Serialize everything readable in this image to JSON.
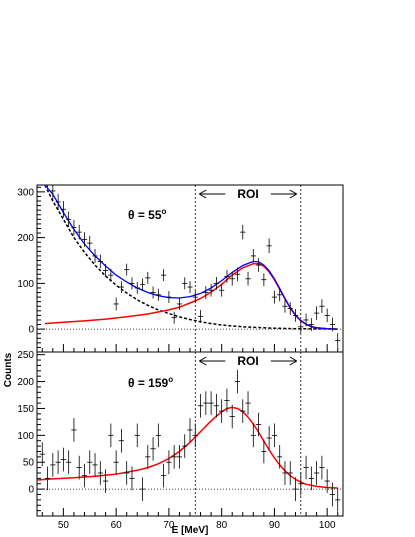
{
  "chart_data": [
    {
      "type": "scatter",
      "panel": "top",
      "annotation": "θ = 55°",
      "annotation_base": "θ = 55",
      "annotation_sup": "o",
      "roi_label": "ROI",
      "xlabel": "E [MeV]",
      "ylabel": "Counts",
      "xlim": [
        45,
        103
      ],
      "ylim": [
        -50,
        315
      ],
      "yticks": [
        0,
        100,
        200,
        300
      ],
      "roi": [
        75,
        95
      ],
      "zero_line": true,
      "colors": {
        "total_fit": "#0000ff",
        "signal_fit": "#ff0000",
        "background_fit": "#000000",
        "data": "#000000"
      },
      "points": [
        {
          "x": 47,
          "y": 330,
          "err": 20
        },
        {
          "x": 48,
          "y": 302,
          "err": 20
        },
        {
          "x": 49,
          "y": 278,
          "err": 18
        },
        {
          "x": 50,
          "y": 262,
          "err": 18
        },
        {
          "x": 51,
          "y": 240,
          "err": 17
        },
        {
          "x": 52,
          "y": 222,
          "err": 17
        },
        {
          "x": 53,
          "y": 212,
          "err": 16
        },
        {
          "x": 54,
          "y": 196,
          "err": 16
        },
        {
          "x": 55,
          "y": 188,
          "err": 16
        },
        {
          "x": 56,
          "y": 160,
          "err": 15
        },
        {
          "x": 57,
          "y": 148,
          "err": 15
        },
        {
          "x": 58,
          "y": 128,
          "err": 14
        },
        {
          "x": 59,
          "y": 118,
          "err": 14
        },
        {
          "x": 60,
          "y": 55,
          "err": 14
        },
        {
          "x": 61,
          "y": 92,
          "err": 13
        },
        {
          "x": 62,
          "y": 130,
          "err": 13
        },
        {
          "x": 63,
          "y": 100,
          "err": 13
        },
        {
          "x": 64,
          "y": 90,
          "err": 13
        },
        {
          "x": 65,
          "y": 98,
          "err": 13
        },
        {
          "x": 66,
          "y": 112,
          "err": 13
        },
        {
          "x": 67,
          "y": 80,
          "err": 13
        },
        {
          "x": 68,
          "y": 75,
          "err": 13
        },
        {
          "x": 69,
          "y": 118,
          "err": 13
        },
        {
          "x": 70,
          "y": 70,
          "err": 13
        },
        {
          "x": 71,
          "y": 25,
          "err": 13
        },
        {
          "x": 72,
          "y": 55,
          "err": 13
        },
        {
          "x": 73,
          "y": 100,
          "err": 13
        },
        {
          "x": 74,
          "y": 92,
          "err": 13
        },
        {
          "x": 75,
          "y": 70,
          "err": 13
        },
        {
          "x": 76,
          "y": 28,
          "err": 14
        },
        {
          "x": 77,
          "y": 80,
          "err": 14
        },
        {
          "x": 78,
          "y": 85,
          "err": 14
        },
        {
          "x": 79,
          "y": 100,
          "err": 14
        },
        {
          "x": 80,
          "y": 85,
          "err": 14
        },
        {
          "x": 81,
          "y": 115,
          "err": 14
        },
        {
          "x": 82,
          "y": 110,
          "err": 15
        },
        {
          "x": 83,
          "y": 120,
          "err": 15
        },
        {
          "x": 84,
          "y": 212,
          "err": 16
        },
        {
          "x": 85,
          "y": 110,
          "err": 15
        },
        {
          "x": 86,
          "y": 160,
          "err": 15
        },
        {
          "x": 87,
          "y": 140,
          "err": 15
        },
        {
          "x": 88,
          "y": 108,
          "err": 14
        },
        {
          "x": 89,
          "y": 182,
          "err": 16
        },
        {
          "x": 90,
          "y": 70,
          "err": 14
        },
        {
          "x": 91,
          "y": 75,
          "err": 14
        },
        {
          "x": 92,
          "y": 50,
          "err": 14
        },
        {
          "x": 93,
          "y": 45,
          "err": 14
        },
        {
          "x": 94,
          "y": 30,
          "err": 14
        },
        {
          "x": 95,
          "y": 5,
          "err": 14
        },
        {
          "x": 96,
          "y": 20,
          "err": 14
        },
        {
          "x": 97,
          "y": 10,
          "err": 14
        },
        {
          "x": 98,
          "y": 35,
          "err": 15
        },
        {
          "x": 99,
          "y": 50,
          "err": 15
        },
        {
          "x": 100,
          "y": 30,
          "err": 15
        },
        {
          "x": 101,
          "y": 10,
          "err": 15
        },
        {
          "x": 102,
          "y": -25,
          "err": 16
        }
      ],
      "fit_total": [
        [
          46.5,
          330
        ],
        [
          48,
          295
        ],
        [
          50,
          255
        ],
        [
          52,
          218
        ],
        [
          54,
          186
        ],
        [
          56,
          160
        ],
        [
          58,
          138
        ],
        [
          60,
          118
        ],
        [
          62,
          103
        ],
        [
          64,
          90
        ],
        [
          66,
          80
        ],
        [
          68,
          73
        ],
        [
          70,
          69
        ],
        [
          72,
          68
        ],
        [
          74,
          71
        ],
        [
          76,
          78
        ],
        [
          78,
          90
        ],
        [
          80,
          106
        ],
        [
          82,
          124
        ],
        [
          84,
          139
        ],
        [
          86,
          148
        ],
        [
          87,
          147
        ],
        [
          88,
          140
        ],
        [
          89,
          128
        ],
        [
          90,
          110
        ],
        [
          91,
          89
        ],
        [
          92,
          67
        ],
        [
          93,
          47
        ],
        [
          94,
          31
        ],
        [
          95,
          19
        ],
        [
          96,
          11
        ],
        [
          97,
          6
        ],
        [
          98,
          3
        ],
        [
          100,
          1
        ],
        [
          102,
          0
        ]
      ],
      "fit_signal": [
        [
          46.5,
          12
        ],
        [
          50,
          15
        ],
        [
          54,
          18
        ],
        [
          58,
          22
        ],
        [
          62,
          27
        ],
        [
          66,
          33
        ],
        [
          70,
          42
        ],
        [
          72,
          48
        ],
        [
          74,
          57
        ],
        [
          76,
          67
        ],
        [
          78,
          81
        ],
        [
          80,
          98
        ],
        [
          82,
          118
        ],
        [
          84,
          134
        ],
        [
          86,
          143
        ],
        [
          87,
          143
        ],
        [
          88,
          137
        ],
        [
          89,
          125
        ],
        [
          90,
          108
        ],
        [
          91,
          87
        ],
        [
          92,
          66
        ],
        [
          93,
          46
        ],
        [
          94,
          30
        ],
        [
          95,
          18
        ],
        [
          96,
          10
        ],
        [
          97,
          5
        ],
        [
          98,
          3
        ],
        [
          100,
          1
        ],
        [
          102,
          0
        ]
      ],
      "fit_background": [
        [
          46.5,
          318
        ],
        [
          48,
          280
        ],
        [
          50,
          240
        ],
        [
          52,
          200
        ],
        [
          54,
          168
        ],
        [
          56,
          140
        ],
        [
          58,
          116
        ],
        [
          60,
          96
        ],
        [
          62,
          79
        ],
        [
          64,
          64
        ],
        [
          66,
          52
        ],
        [
          68,
          42
        ],
        [
          70,
          34
        ],
        [
          72,
          27
        ],
        [
          74,
          21
        ],
        [
          76,
          16
        ],
        [
          78,
          12
        ],
        [
          80,
          9
        ],
        [
          82,
          7
        ],
        [
          84,
          5
        ],
        [
          86,
          4
        ],
        [
          88,
          3
        ],
        [
          90,
          2
        ],
        [
          94,
          1
        ],
        [
          102,
          0
        ]
      ]
    },
    {
      "type": "scatter",
      "panel": "bottom",
      "annotation": "θ = 159°",
      "annotation_base": "θ = 159",
      "annotation_sup": "o",
      "roi_label": "ROI",
      "xlabel": "E [MeV]",
      "ylabel": "Counts",
      "xlim": [
        45,
        103
      ],
      "ylim": [
        -50,
        255
      ],
      "yticks": [
        0,
        50,
        100,
        150,
        200,
        250
      ],
      "xticks": [
        50,
        60,
        70,
        80,
        90,
        100
      ],
      "roi": [
        75,
        95
      ],
      "zero_line": true,
      "colors": {
        "signal_fit": "#ff0000",
        "data": "#000000"
      },
      "points": [
        {
          "x": 46,
          "y": 65,
          "err": 22
        },
        {
          "x": 47,
          "y": 20,
          "err": 22
        },
        {
          "x": 48,
          "y": 45,
          "err": 22
        },
        {
          "x": 49,
          "y": 50,
          "err": 22
        },
        {
          "x": 50,
          "y": 55,
          "err": 22
        },
        {
          "x": 51,
          "y": 50,
          "err": 22
        },
        {
          "x": 52,
          "y": 110,
          "err": 22
        },
        {
          "x": 53,
          "y": 40,
          "err": 22
        },
        {
          "x": 54,
          "y": 25,
          "err": 22
        },
        {
          "x": 55,
          "y": 50,
          "err": 22
        },
        {
          "x": 56,
          "y": 45,
          "err": 22
        },
        {
          "x": 57,
          "y": 30,
          "err": 22
        },
        {
          "x": 58,
          "y": 15,
          "err": 22
        },
        {
          "x": 59,
          "y": 100,
          "err": 22
        },
        {
          "x": 60,
          "y": 50,
          "err": 22
        },
        {
          "x": 61,
          "y": 90,
          "err": 22
        },
        {
          "x": 62,
          "y": 30,
          "err": 22
        },
        {
          "x": 63,
          "y": 20,
          "err": 22
        },
        {
          "x": 64,
          "y": 100,
          "err": 22
        },
        {
          "x": 65,
          "y": 0,
          "err": 22
        },
        {
          "x": 66,
          "y": 60,
          "err": 22
        },
        {
          "x": 67,
          "y": 75,
          "err": 22
        },
        {
          "x": 68,
          "y": 100,
          "err": 22
        },
        {
          "x": 69,
          "y": 25,
          "err": 22
        },
        {
          "x": 70,
          "y": 50,
          "err": 22
        },
        {
          "x": 71,
          "y": 60,
          "err": 22
        },
        {
          "x": 72,
          "y": 60,
          "err": 22
        },
        {
          "x": 73,
          "y": 80,
          "err": 22
        },
        {
          "x": 74,
          "y": 110,
          "err": 22
        },
        {
          "x": 75,
          "y": 100,
          "err": 22
        },
        {
          "x": 76,
          "y": 155,
          "err": 22
        },
        {
          "x": 77,
          "y": 160,
          "err": 22
        },
        {
          "x": 78,
          "y": 160,
          "err": 22
        },
        {
          "x": 79,
          "y": 155,
          "err": 22
        },
        {
          "x": 80,
          "y": 145,
          "err": 22
        },
        {
          "x": 81,
          "y": 165,
          "err": 22
        },
        {
          "x": 82,
          "y": 135,
          "err": 22
        },
        {
          "x": 83,
          "y": 200,
          "err": 22
        },
        {
          "x": 84,
          "y": 145,
          "err": 22
        },
        {
          "x": 85,
          "y": 160,
          "err": 22
        },
        {
          "x": 86,
          "y": 100,
          "err": 22
        },
        {
          "x": 87,
          "y": 120,
          "err": 22
        },
        {
          "x": 88,
          "y": 70,
          "err": 22
        },
        {
          "x": 89,
          "y": 95,
          "err": 22
        },
        {
          "x": 90,
          "y": 100,
          "err": 22
        },
        {
          "x": 91,
          "y": 60,
          "err": 22
        },
        {
          "x": 92,
          "y": 30,
          "err": 22
        },
        {
          "x": 93,
          "y": 30,
          "err": 22
        },
        {
          "x": 94,
          "y": 0,
          "err": 22
        },
        {
          "x": 95,
          "y": 10,
          "err": 22
        },
        {
          "x": 96,
          "y": 40,
          "err": 22
        },
        {
          "x": 97,
          "y": 20,
          "err": 22
        },
        {
          "x": 98,
          "y": 30,
          "err": 22
        },
        {
          "x": 99,
          "y": 40,
          "err": 22
        },
        {
          "x": 100,
          "y": 15,
          "err": 22
        },
        {
          "x": 101,
          "y": -10,
          "err": 22
        },
        {
          "x": 102,
          "y": -20,
          "err": 22
        }
      ],
      "fit_signal": [
        [
          45,
          17
        ],
        [
          48,
          19
        ],
        [
          52,
          21
        ],
        [
          56,
          24
        ],
        [
          60,
          28
        ],
        [
          64,
          35
        ],
        [
          66,
          40
        ],
        [
          68,
          47
        ],
        [
          70,
          57
        ],
        [
          72,
          70
        ],
        [
          74,
          87
        ],
        [
          76,
          107
        ],
        [
          78,
          127
        ],
        [
          80,
          144
        ],
        [
          81,
          150
        ],
        [
          82,
          152
        ],
        [
          83,
          150
        ],
        [
          84,
          144
        ],
        [
          85,
          134
        ],
        [
          86,
          121
        ],
        [
          87,
          106
        ],
        [
          88,
          89
        ],
        [
          89,
          73
        ],
        [
          90,
          58
        ],
        [
          91,
          45
        ],
        [
          92,
          34
        ],
        [
          93,
          25
        ],
        [
          94,
          18
        ],
        [
          95,
          13
        ],
        [
          96,
          9
        ],
        [
          98,
          5
        ],
        [
          100,
          3
        ],
        [
          102,
          2
        ]
      ]
    }
  ]
}
